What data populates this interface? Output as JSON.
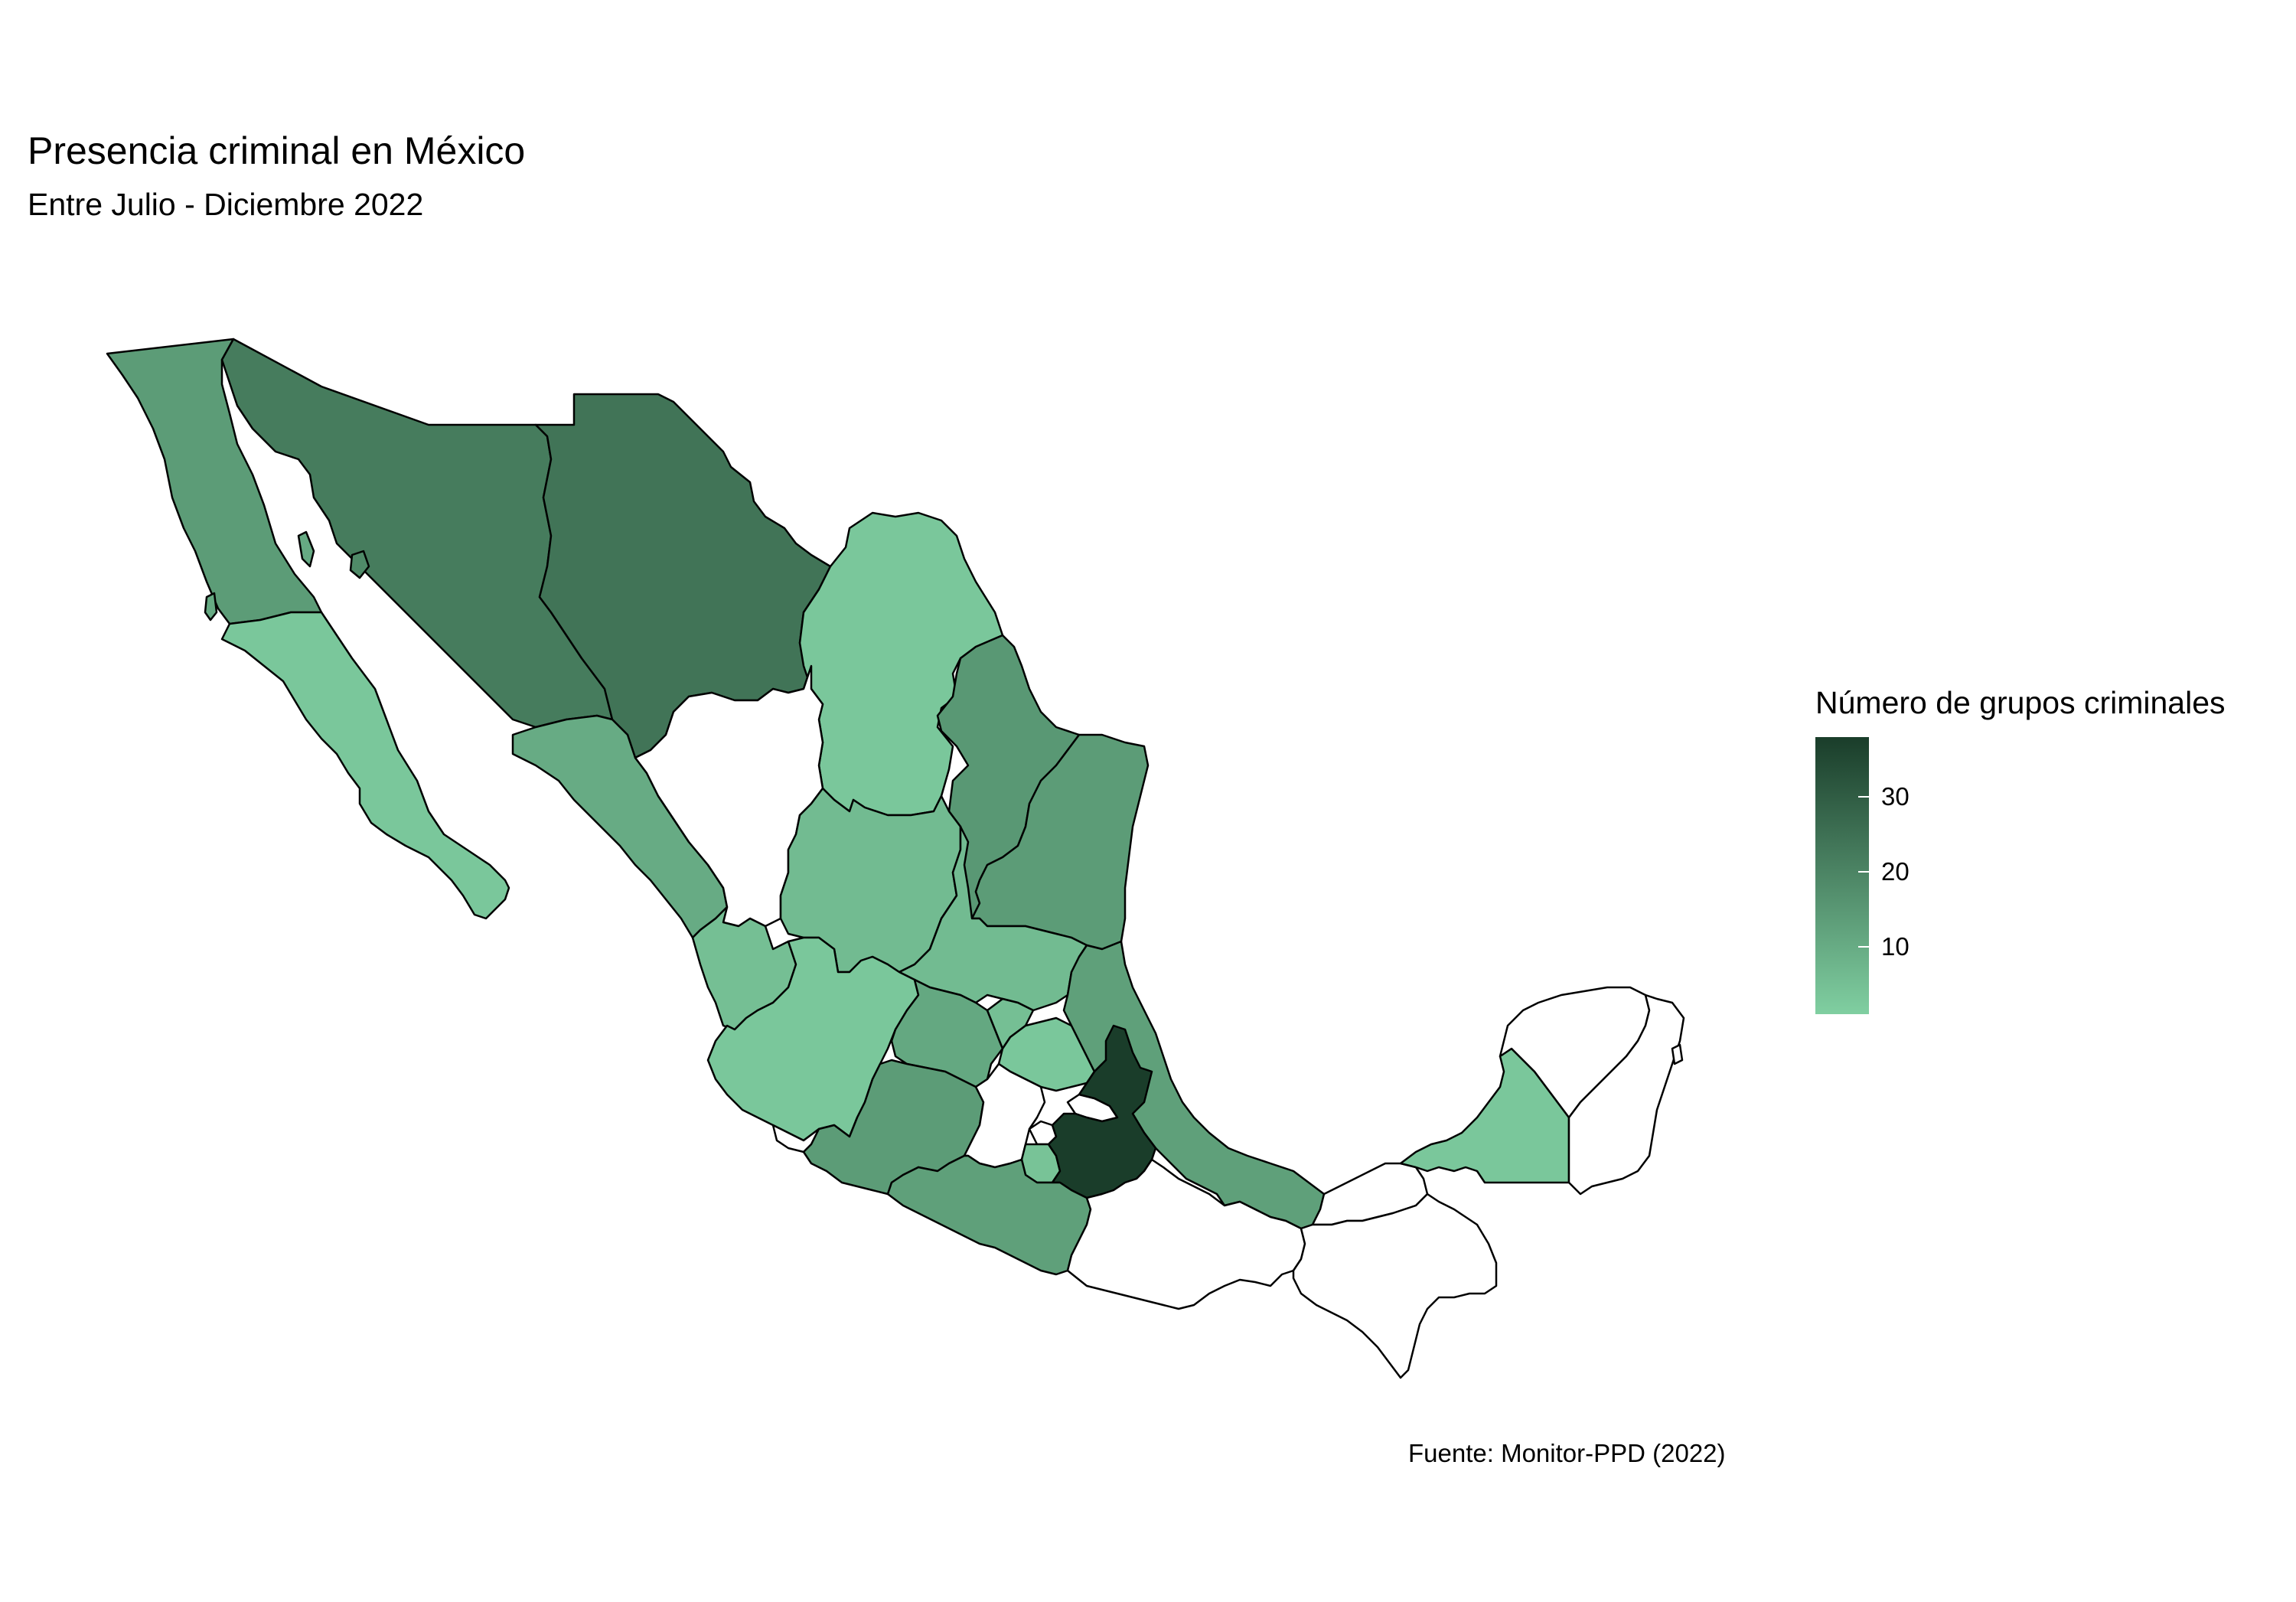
{
  "title": "Presencia criminal en México",
  "subtitle": "Entre Julio - Diciembre 2022",
  "caption": "Fuente: Monitor-PPD (2022)",
  "legend": {
    "title": "Número de grupos criminales",
    "ticks": [
      "30",
      "20",
      "10"
    ],
    "tick_values": [
      30,
      20,
      10
    ],
    "range": [
      1,
      38
    ],
    "color_low": "#80cfa1",
    "color_high": "#1a3d2a"
  },
  "regions": [
    {
      "name": "Baja California",
      "value": 14
    },
    {
      "name": "Baja California Sur",
      "value": 3
    },
    {
      "name": "Sonora",
      "value": 22
    },
    {
      "name": "Chihuahua",
      "value": 24
    },
    {
      "name": "Coahuila",
      "value": 3
    },
    {
      "name": "Nuevo León",
      "value": 15
    },
    {
      "name": "Tamaulipas",
      "value": 14
    },
    {
      "name": "Sinaloa",
      "value": 10
    },
    {
      "name": "Durango",
      "value": null
    },
    {
      "name": "Zacatecas",
      "value": 6
    },
    {
      "name": "San Luis Potosí",
      "value": 6
    },
    {
      "name": "Nayarit",
      "value": 5
    },
    {
      "name": "Aguascalientes",
      "value": 4
    },
    {
      "name": "Jalisco",
      "value": 3
    },
    {
      "name": "Guanajuato",
      "value": 11
    },
    {
      "name": "Querétaro",
      "value": 5
    },
    {
      "name": "Hidalgo",
      "value": 3
    },
    {
      "name": "Veracruz",
      "value": 13
    },
    {
      "name": "Colima",
      "value": null
    },
    {
      "name": "Michoacán",
      "value": 14
    },
    {
      "name": "Estado de México",
      "value": null
    },
    {
      "name": "Ciudad de México",
      "value": null
    },
    {
      "name": "Morelos",
      "value": 4
    },
    {
      "name": "Tlaxcala",
      "value": null
    },
    {
      "name": "Puebla",
      "value": 38
    },
    {
      "name": "Guerrero",
      "value": 13
    },
    {
      "name": "Oaxaca",
      "value": null
    },
    {
      "name": "Tabasco",
      "value": null
    },
    {
      "name": "Chiapas",
      "value": null
    },
    {
      "name": "Campeche",
      "value": 3
    },
    {
      "name": "Yucatán",
      "value": null
    },
    {
      "name": "Quintana Roo",
      "value": null
    }
  ]
}
